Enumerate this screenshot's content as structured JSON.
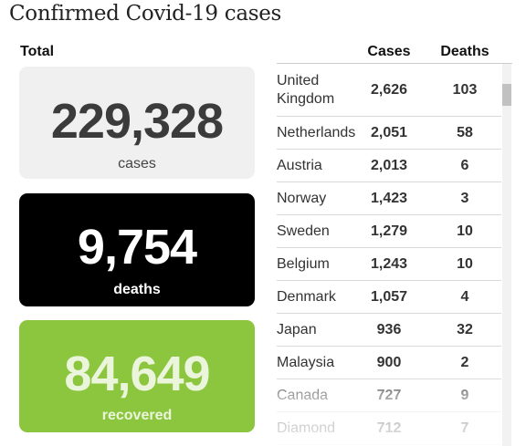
{
  "title": "Confirmed Covid-19 cases",
  "total_label": "Total",
  "totals": {
    "cases": {
      "value": "229,328",
      "label": "cases"
    },
    "deaths": {
      "value": "9,754",
      "label": "deaths"
    },
    "recovered": {
      "value": "84,649",
      "label": "recovered"
    }
  },
  "colors": {
    "cases_card": "#f0f0f0",
    "deaths_card": "#000000",
    "recovered_card": "#8cc63f"
  },
  "chart_data": {
    "type": "table",
    "columns": [
      "",
      "Cases",
      "Deaths"
    ],
    "rows": [
      {
        "country": "United Kingdom",
        "cases": "2,626",
        "deaths": "103"
      },
      {
        "country": "Netherlands",
        "cases": "2,051",
        "deaths": "58"
      },
      {
        "country": "Austria",
        "cases": "2,013",
        "deaths": "6"
      },
      {
        "country": "Norway",
        "cases": "1,423",
        "deaths": "3"
      },
      {
        "country": "Sweden",
        "cases": "1,279",
        "deaths": "10"
      },
      {
        "country": "Belgium",
        "cases": "1,243",
        "deaths": "10"
      },
      {
        "country": "Denmark",
        "cases": "1,057",
        "deaths": "4"
      },
      {
        "country": "Japan",
        "cases": "936",
        "deaths": "32"
      },
      {
        "country": "Malaysia",
        "cases": "900",
        "deaths": "2"
      },
      {
        "country": "Canada",
        "cases": "727",
        "deaths": "9"
      },
      {
        "country": "Diamond",
        "cases": "712",
        "deaths": "7"
      }
    ]
  }
}
